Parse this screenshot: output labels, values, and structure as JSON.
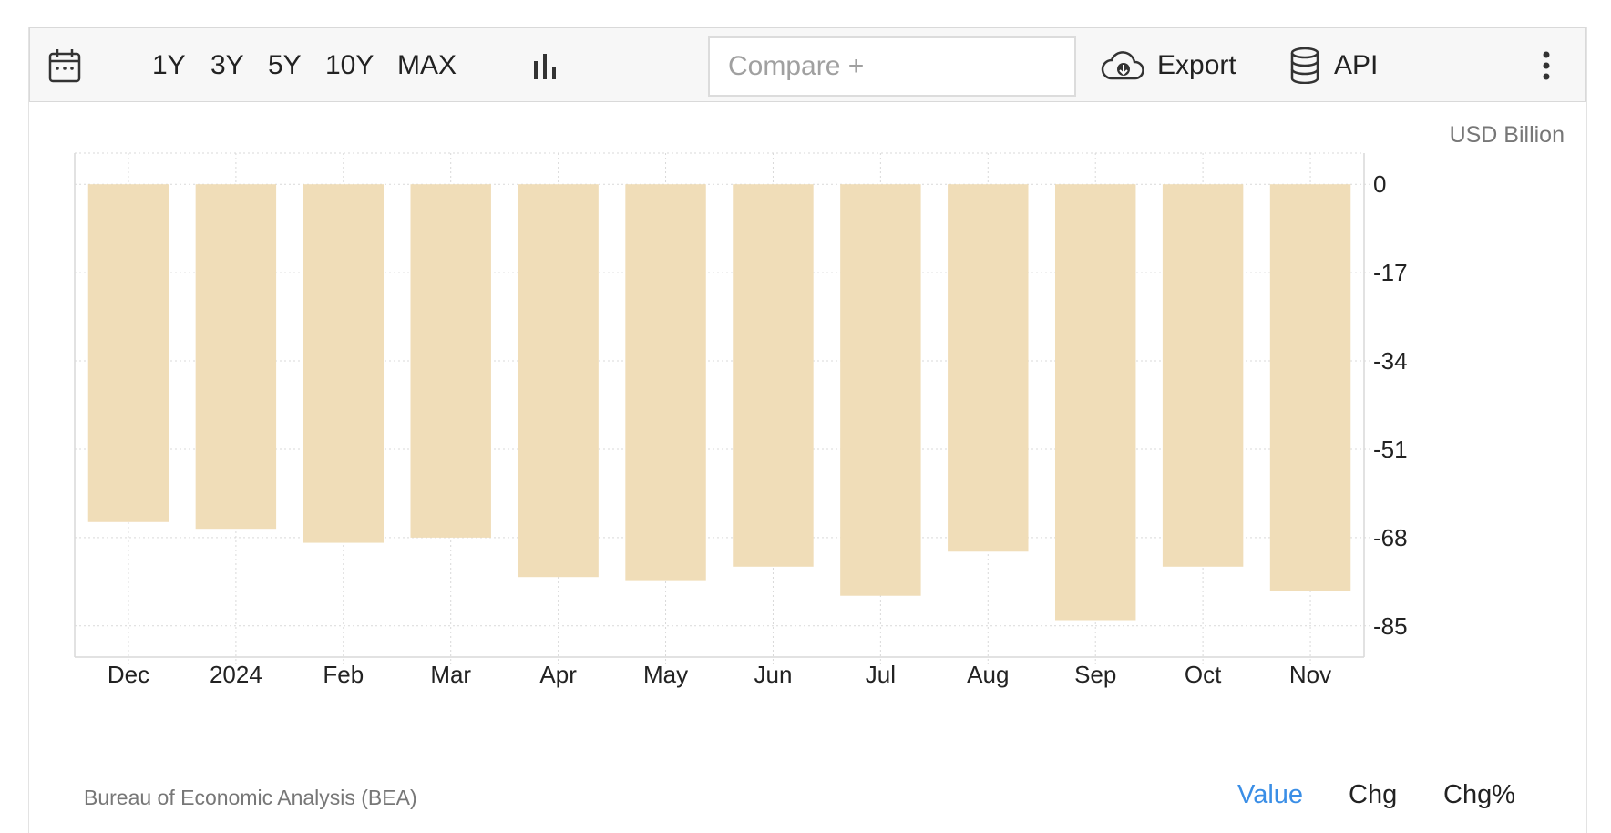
{
  "toolbar": {
    "calendar_icon": "calendar-icon",
    "ranges": [
      "1Y",
      "3Y",
      "5Y",
      "10Y",
      "MAX"
    ],
    "chart_type_icon": "bar-chart-icon",
    "compare_placeholder": "Compare +",
    "export_label": "Export",
    "export_icon": "cloud-download-icon",
    "api_label": "API",
    "api_icon": "database-icon",
    "more_icon": "vertical-dots-icon"
  },
  "unit_label": "USD Billion",
  "source": "Bureau of Economic Analysis (BEA)",
  "modes": {
    "value": "Value",
    "chg": "Chg",
    "chg_pct": "Chg%"
  },
  "colors": {
    "bar": "#f0ddb8",
    "accent": "#3a8ee6",
    "grid": "#d9d9d9"
  },
  "chart_data": {
    "type": "bar",
    "title": "",
    "xlabel": "",
    "ylabel": "USD Billion",
    "categories": [
      "Dec",
      "2024",
      "Feb",
      "Mar",
      "Apr",
      "May",
      "Jun",
      "Jul",
      "Aug",
      "Sep",
      "Oct",
      "Nov"
    ],
    "values": [
      -65.0,
      -66.3,
      -69.0,
      -68.0,
      -75.6,
      -76.2,
      -73.6,
      -79.2,
      -70.7,
      -83.9,
      -73.6,
      -78.2
    ],
    "yticks": [
      0,
      -17,
      -34,
      -51,
      -68,
      -85
    ],
    "ylim": [
      -91,
      6
    ],
    "grid": true,
    "legend": "none"
  }
}
